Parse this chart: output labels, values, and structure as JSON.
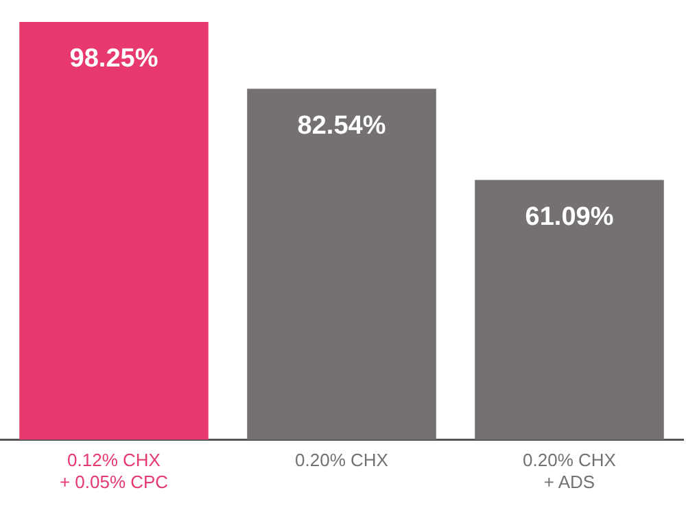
{
  "chart_data": {
    "type": "bar",
    "categories": [
      "0.12% CHX\n+ 0.05% CPC",
      "0.20% CHX",
      "0.20% CHX\n+ ADS"
    ],
    "values": [
      98.25,
      82.54,
      61.09
    ],
    "value_labels": [
      "98.25%",
      "82.54%",
      "61.09%"
    ],
    "colors": [
      "#e8396f",
      "#767171",
      "#767171"
    ],
    "grid": false,
    "legend": false,
    "tick_labels": "x"
  }
}
